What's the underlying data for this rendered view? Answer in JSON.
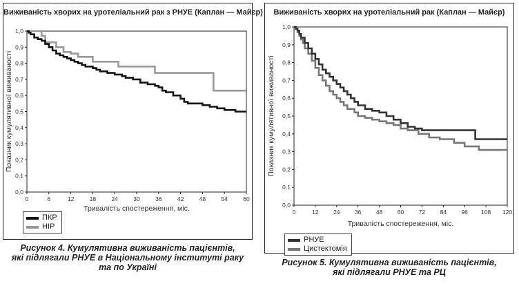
{
  "charts": [
    {
      "title": "Виживаність хворих на уротеліальний рак з РНУЕ (Каплан — Майєр)",
      "xlabel": "Тривалість спостереження, міс.",
      "ylabel": "Показник кумулятивної виживаності",
      "legend": [
        {
          "label": "ПКР",
          "color": "#111111"
        },
        {
          "label": "НІР",
          "color": "#999999"
        }
      ],
      "caption_lines": [
        "Рисунок 4. Кумулятивна виживаність пацієнтів,",
        "які підлягали РНУЕ в Національному інституті раку",
        "та по Україні"
      ]
    },
    {
      "title": "Виживаність хворих на уротеліальний рак (Каплан — Майєр)",
      "xlabel": "Тривалість спостереження, міс.",
      "ylabel": "Показник кумулятивної виживаності",
      "legend": [
        {
          "label": "РНУЕ",
          "color": "#333333"
        },
        {
          "label": "Цистектомія",
          "color": "#777777"
        }
      ],
      "caption_lines": [
        "Рисунок 5. Кумулятивна виживаність пацієнтів,",
        "які підлягали РНУЕ та РЦ"
      ]
    }
  ],
  "chart_data": [
    {
      "type": "line",
      "title": "Виживаність хворих на уротеліальний рак з РНУЕ (Каплан — Майєр)",
      "xlabel": "Тривалість спостереження, міс.",
      "ylabel": "Показник кумулятивної виживаності",
      "xlim": [
        0,
        60
      ],
      "ylim": [
        0,
        1.0
      ],
      "xticks": [
        0,
        6,
        12,
        18,
        24,
        30,
        36,
        42,
        48,
        54,
        60
      ],
      "yticks": [
        0.0,
        0.1,
        0.2,
        0.3,
        0.4,
        0.5,
        0.6,
        0.7,
        0.8,
        0.9,
        1.0
      ],
      "grid": false,
      "legend_position": "bottom-left-outside",
      "series": [
        {
          "name": "ПКР",
          "color": "#111111",
          "step": true,
          "x": [
            0,
            0.5,
            1,
            2,
            3,
            4,
            5,
            6,
            7,
            8,
            9,
            10,
            11,
            12,
            13,
            14,
            15,
            16,
            18,
            19,
            20,
            22,
            24,
            26,
            27,
            29,
            31,
            33,
            35,
            36,
            37,
            38,
            40,
            42,
            43,
            44,
            48,
            50,
            52,
            54,
            57,
            60
          ],
          "y": [
            1.0,
            0.99,
            0.98,
            0.96,
            0.95,
            0.94,
            0.92,
            0.9,
            0.88,
            0.86,
            0.85,
            0.84,
            0.83,
            0.82,
            0.81,
            0.8,
            0.79,
            0.78,
            0.77,
            0.76,
            0.75,
            0.74,
            0.73,
            0.72,
            0.71,
            0.7,
            0.68,
            0.67,
            0.66,
            0.65,
            0.63,
            0.62,
            0.6,
            0.58,
            0.56,
            0.55,
            0.54,
            0.53,
            0.52,
            0.51,
            0.5,
            0.5
          ]
        },
        {
          "name": "НІР",
          "color": "#999999",
          "step": true,
          "x": [
            0,
            4,
            5,
            8,
            10,
            12,
            14,
            18,
            25,
            35,
            51,
            60
          ],
          "y": [
            1.0,
            0.97,
            0.93,
            0.9,
            0.87,
            0.86,
            0.84,
            0.81,
            0.78,
            0.74,
            0.63,
            0.63
          ]
        }
      ]
    },
    {
      "type": "line",
      "title": "Виживаність хворих на уротеліальний рак (Каплан — Майєр)",
      "xlabel": "Тривалість спостереження, міс.",
      "ylabel": "Показник кумулятивної виживаності",
      "xlim": [
        0,
        120
      ],
      "ylim": [
        0,
        1.0
      ],
      "xticks": [
        0,
        12,
        24,
        36,
        48,
        60,
        72,
        84,
        96,
        108,
        120
      ],
      "yticks": [
        0.0,
        0.1,
        0.2,
        0.3,
        0.4,
        0.5,
        0.6,
        0.7,
        0.8,
        0.9,
        1.0
      ],
      "grid": false,
      "legend_position": "bottom-left-outside",
      "series": [
        {
          "name": "РНУЕ",
          "color": "#333333",
          "step": true,
          "x": [
            0,
            1,
            2,
            3,
            4,
            6,
            8,
            10,
            12,
            14,
            16,
            18,
            20,
            22,
            24,
            26,
            28,
            30,
            32,
            34,
            36,
            40,
            44,
            48,
            52,
            56,
            60,
            64,
            68,
            72,
            76,
            84,
            90,
            96,
            102,
            108,
            120
          ],
          "y": [
            1.0,
            0.99,
            0.98,
            0.96,
            0.94,
            0.91,
            0.88,
            0.85,
            0.82,
            0.79,
            0.76,
            0.74,
            0.72,
            0.7,
            0.68,
            0.66,
            0.64,
            0.62,
            0.6,
            0.58,
            0.56,
            0.54,
            0.53,
            0.52,
            0.5,
            0.48,
            0.46,
            0.44,
            0.43,
            0.42,
            0.42,
            0.42,
            0.42,
            0.42,
            0.37,
            0.37,
            0.37
          ]
        },
        {
          "name": "Цистектомія",
          "color": "#777777",
          "step": true,
          "x": [
            0,
            1,
            2,
            3,
            4,
            5,
            6,
            8,
            10,
            12,
            14,
            16,
            18,
            20,
            22,
            24,
            26,
            28,
            30,
            34,
            36,
            40,
            44,
            48,
            52,
            56,
            60,
            64,
            70,
            76,
            82,
            90,
            96,
            104,
            120
          ],
          "y": [
            1.0,
            0.99,
            0.97,
            0.95,
            0.93,
            0.91,
            0.88,
            0.85,
            0.81,
            0.77,
            0.73,
            0.7,
            0.67,
            0.64,
            0.62,
            0.6,
            0.58,
            0.56,
            0.54,
            0.52,
            0.5,
            0.49,
            0.48,
            0.47,
            0.46,
            0.45,
            0.43,
            0.42,
            0.4,
            0.38,
            0.37,
            0.35,
            0.33,
            0.31,
            0.31
          ]
        }
      ]
    }
  ]
}
